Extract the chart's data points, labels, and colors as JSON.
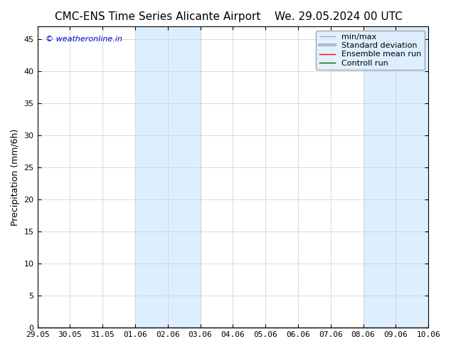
{
  "title_left": "CMC-ENS Time Series Alicante Airport",
  "title_right": "We. 29.05.2024 00 UTC",
  "ylabel": "Precipitation (mm/6h)",
  "watermark": "© weatheronline.in",
  "watermark_color": "#0000cc",
  "ylim": [
    0,
    47
  ],
  "yticks": [
    0,
    5,
    10,
    15,
    20,
    25,
    30,
    35,
    40,
    45
  ],
  "total_days": 12,
  "xtick_labels": [
    "29.05",
    "30.05",
    "31.05",
    "01.06",
    "02.06",
    "03.06",
    "04.06",
    "05.06",
    "06.06",
    "07.06",
    "08.06",
    "09.06",
    "10.06"
  ],
  "shaded_regions": [
    {
      "xstart_days": 3,
      "xend_days": 5
    },
    {
      "xstart_days": 10,
      "xend_days": 12
    }
  ],
  "shaded_color": "#ddeeff",
  "background_color": "#ffffff",
  "legend_entries": [
    {
      "label": "min/max",
      "color": "#aaaaaa",
      "lw": 1
    },
    {
      "label": "Standard deviation",
      "color": "#aabbcc",
      "lw": 3
    },
    {
      "label": "Ensemble mean run",
      "color": "#ff0000",
      "lw": 1
    },
    {
      "label": "Controll run",
      "color": "#006600",
      "lw": 1
    }
  ],
  "title_fontsize": 11,
  "axis_label_fontsize": 9,
  "tick_fontsize": 8,
  "legend_fontsize": 8
}
